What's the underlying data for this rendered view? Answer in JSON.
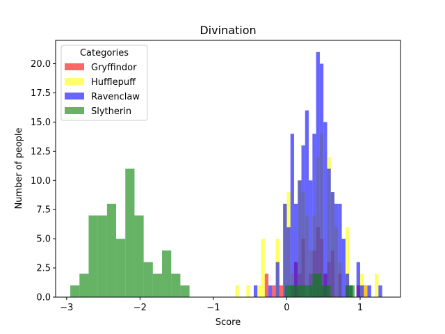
{
  "chart_data": {
    "type": "histogram",
    "title": "Divination",
    "xlabel": "Score",
    "ylabel": "Number of people",
    "xlim": [
      -3.15,
      1.55
    ],
    "ylim": [
      0,
      22
    ],
    "x_ticks": [
      -3,
      -2,
      -1,
      0,
      1
    ],
    "x_tick_labels": [
      "−3",
      "−2",
      "−1",
      "0",
      "1"
    ],
    "y_ticks": [
      0,
      2.5,
      5,
      7.5,
      10,
      12.5,
      15,
      17.5,
      20
    ],
    "y_tick_labels": [
      "0.0",
      "2.5",
      "5.0",
      "7.5",
      "10.0",
      "12.5",
      "15.0",
      "17.5",
      "20.0"
    ],
    "grid": false,
    "legend": {
      "title": "Categories",
      "placement": "top-left"
    },
    "series": [
      {
        "name": "Gryffindor",
        "color": "#ff0000",
        "opacity": 0.6,
        "bins": [
          {
            "x0": -0.3,
            "x1": -0.25,
            "count": 2
          },
          {
            "x0": -0.2,
            "x1": -0.15,
            "count": 1
          },
          {
            "x0": -0.1,
            "x1": -0.05,
            "count": 1
          },
          {
            "x0": 0.05,
            "x1": 0.1,
            "count": 1
          },
          {
            "x0": 0.1,
            "x1": 0.15,
            "count": 3
          },
          {
            "x0": 0.15,
            "x1": 0.2,
            "count": 2
          },
          {
            "x0": 0.2,
            "x1": 0.25,
            "count": 5
          },
          {
            "x0": 0.3,
            "x1": 0.35,
            "count": 2
          },
          {
            "x0": 0.35,
            "x1": 0.4,
            "count": 4
          },
          {
            "x0": 0.4,
            "x1": 0.45,
            "count": 6
          },
          {
            "x0": 0.45,
            "x1": 0.5,
            "count": 5
          },
          {
            "x0": 0.5,
            "x1": 0.55,
            "count": 2
          },
          {
            "x0": 0.55,
            "x1": 0.6,
            "count": 3
          },
          {
            "x0": 0.6,
            "x1": 0.65,
            "count": 4
          },
          {
            "x0": 0.7,
            "x1": 0.75,
            "count": 2
          },
          {
            "x0": 0.8,
            "x1": 0.85,
            "count": 1
          },
          {
            "x0": 0.95,
            "x1": 1.0,
            "count": 1
          },
          {
            "x0": 1.05,
            "x1": 1.1,
            "count": 1
          }
        ]
      },
      {
        "name": "Hufflepuff",
        "color": "#ffff00",
        "opacity": 0.6,
        "bins": [
          {
            "x0": -0.7,
            "x1": -0.65,
            "count": 1
          },
          {
            "x0": -0.55,
            "x1": -0.5,
            "count": 1
          },
          {
            "x0": -0.4,
            "x1": -0.35,
            "count": 1
          },
          {
            "x0": -0.35,
            "x1": -0.3,
            "count": 5
          },
          {
            "x0": -0.15,
            "x1": -0.1,
            "count": 5
          },
          {
            "x0": -0.05,
            "x1": 0.0,
            "count": 8
          },
          {
            "x0": 0.0,
            "x1": 0.05,
            "count": 9
          },
          {
            "x0": 0.05,
            "x1": 0.1,
            "count": 2
          },
          {
            "x0": 0.15,
            "x1": 0.2,
            "count": 10
          },
          {
            "x0": 0.2,
            "x1": 0.25,
            "count": 9
          },
          {
            "x0": 0.25,
            "x1": 0.3,
            "count": 7
          },
          {
            "x0": 0.3,
            "x1": 0.35,
            "count": 4
          },
          {
            "x0": 0.35,
            "x1": 0.4,
            "count": 7
          },
          {
            "x0": 0.4,
            "x1": 0.45,
            "count": 12
          },
          {
            "x0": 0.45,
            "x1": 0.5,
            "count": 14
          },
          {
            "x0": 0.55,
            "x1": 0.6,
            "count": 12
          },
          {
            "x0": 0.6,
            "x1": 0.65,
            "count": 9
          },
          {
            "x0": 0.65,
            "x1": 0.7,
            "count": 6
          },
          {
            "x0": 0.7,
            "x1": 0.75,
            "count": 3
          },
          {
            "x0": 0.8,
            "x1": 0.85,
            "count": 6
          },
          {
            "x0": 0.85,
            "x1": 0.9,
            "count": 1
          },
          {
            "x0": 1.0,
            "x1": 1.05,
            "count": 2
          },
          {
            "x0": 1.05,
            "x1": 1.1,
            "count": 1
          },
          {
            "x0": 1.2,
            "x1": 1.25,
            "count": 2
          }
        ]
      },
      {
        "name": "Ravenclaw",
        "color": "#0000ff",
        "opacity": 0.6,
        "bins": [
          {
            "x0": -0.45,
            "x1": -0.4,
            "count": 1
          },
          {
            "x0": -0.25,
            "x1": -0.2,
            "count": 1
          },
          {
            "x0": -0.15,
            "x1": -0.1,
            "count": 3
          },
          {
            "x0": -0.05,
            "x1": 0.0,
            "count": 8
          },
          {
            "x0": 0.0,
            "x1": 0.05,
            "count": 6
          },
          {
            "x0": 0.05,
            "x1": 0.1,
            "count": 14
          },
          {
            "x0": 0.1,
            "x1": 0.15,
            "count": 8
          },
          {
            "x0": 0.15,
            "x1": 0.2,
            "count": 10
          },
          {
            "x0": 0.2,
            "x1": 0.25,
            "count": 13
          },
          {
            "x0": 0.25,
            "x1": 0.3,
            "count": 16
          },
          {
            "x0": 0.3,
            "x1": 0.35,
            "count": 10
          },
          {
            "x0": 0.35,
            "x1": 0.4,
            "count": 14
          },
          {
            "x0": 0.4,
            "x1": 0.45,
            "count": 21
          },
          {
            "x0": 0.45,
            "x1": 0.5,
            "count": 20
          },
          {
            "x0": 0.5,
            "x1": 0.55,
            "count": 15
          },
          {
            "x0": 0.55,
            "x1": 0.6,
            "count": 11
          },
          {
            "x0": 0.6,
            "x1": 0.65,
            "count": 9
          },
          {
            "x0": 0.65,
            "x1": 0.7,
            "count": 8
          },
          {
            "x0": 0.7,
            "x1": 0.75,
            "count": 8
          },
          {
            "x0": 0.75,
            "x1": 0.8,
            "count": 5
          },
          {
            "x0": 0.8,
            "x1": 0.85,
            "count": 2
          },
          {
            "x0": 0.85,
            "x1": 0.9,
            "count": 1
          },
          {
            "x0": 0.95,
            "x1": 1.0,
            "count": 3
          },
          {
            "x0": 1.0,
            "x1": 1.05,
            "count": 1
          },
          {
            "x0": 1.1,
            "x1": 1.15,
            "count": 1
          },
          {
            "x0": 1.25,
            "x1": 1.3,
            "count": 1
          }
        ]
      },
      {
        "name": "Slytherin",
        "color": "#008000",
        "opacity": 0.6,
        "bins": [
          {
            "x0": -2.95,
            "x1": -2.825,
            "count": 1
          },
          {
            "x0": -2.825,
            "x1": -2.7,
            "count": 2
          },
          {
            "x0": -2.7,
            "x1": -2.575,
            "count": 7
          },
          {
            "x0": -2.575,
            "x1": -2.45,
            "count": 7
          },
          {
            "x0": -2.45,
            "x1": -2.325,
            "count": 8
          },
          {
            "x0": -2.325,
            "x1": -2.2,
            "count": 5
          },
          {
            "x0": -2.2,
            "x1": -2.075,
            "count": 11
          },
          {
            "x0": -2.075,
            "x1": -1.95,
            "count": 7
          },
          {
            "x0": -1.95,
            "x1": -1.825,
            "count": 3
          },
          {
            "x0": -1.825,
            "x1": -1.7,
            "count": 2
          },
          {
            "x0": -1.7,
            "x1": -1.575,
            "count": 4
          },
          {
            "x0": -1.575,
            "x1": -1.45,
            "count": 2
          },
          {
            "x0": -1.45,
            "x1": -1.325,
            "count": 1
          },
          {
            "x0": -0.025,
            "x1": 0.1,
            "count": 1
          },
          {
            "x0": 0.1,
            "x1": 0.225,
            "count": 1
          },
          {
            "x0": 0.225,
            "x1": 0.35,
            "count": 1
          },
          {
            "x0": 0.35,
            "x1": 0.475,
            "count": 2
          },
          {
            "x0": 0.475,
            "x1": 0.6,
            "count": 1
          },
          {
            "x0": 0.8,
            "x1": 0.925,
            "count": 1
          }
        ]
      }
    ]
  }
}
